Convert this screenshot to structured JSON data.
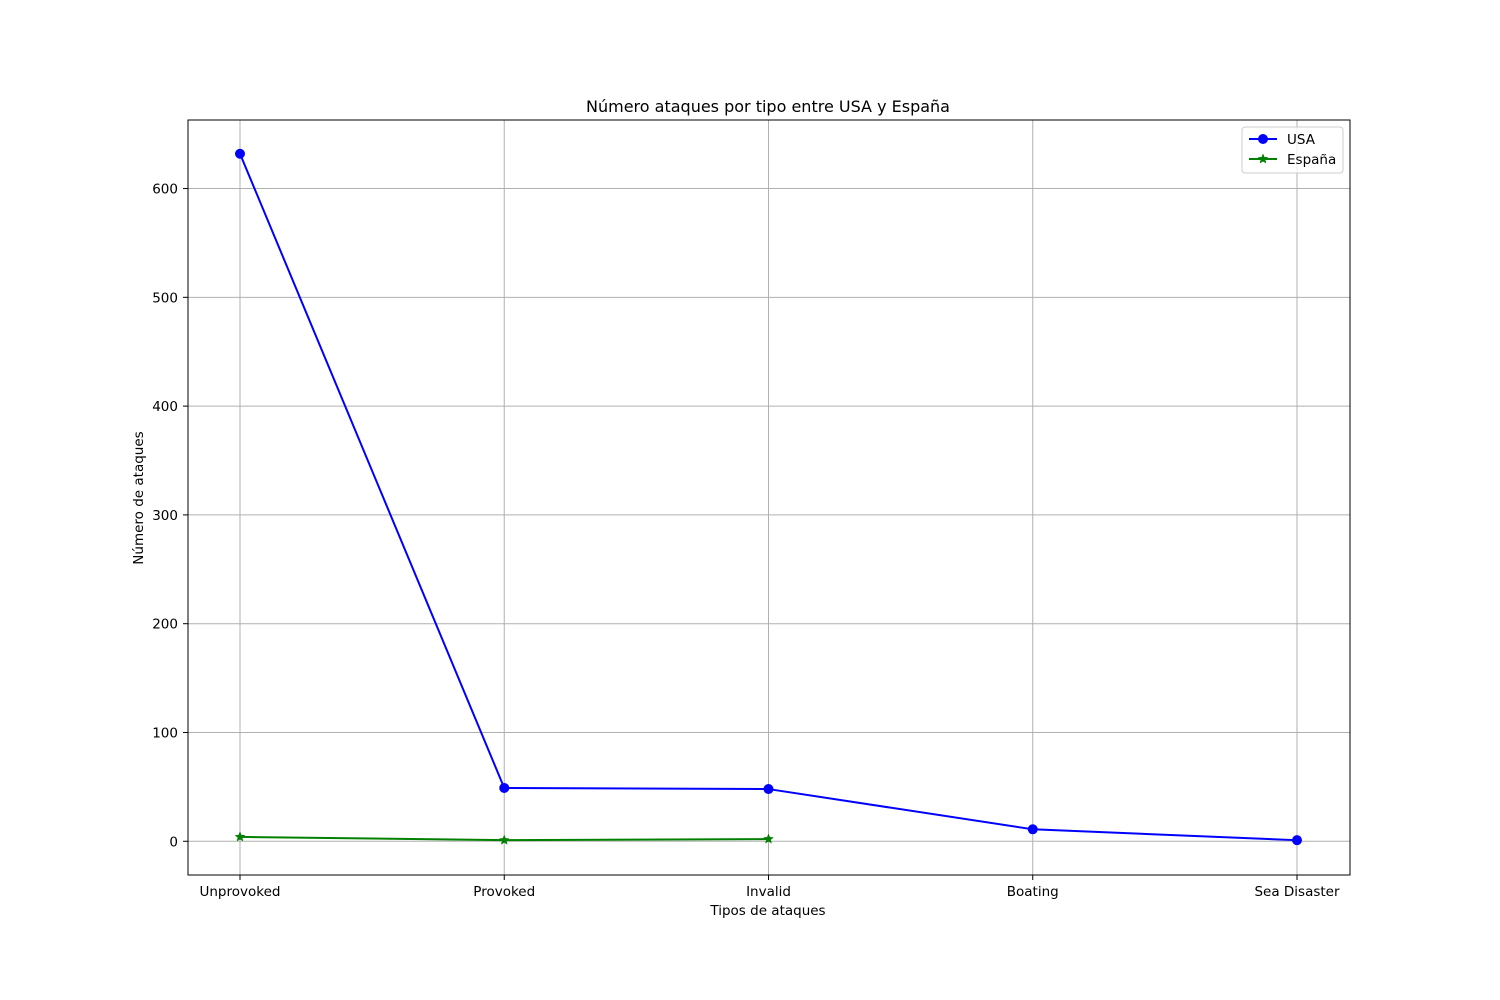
{
  "chart_data": {
    "type": "line",
    "title": "Número ataques por tipo entre USA y España",
    "xlabel": "Tipos de ataques",
    "ylabel": "Número de ataques",
    "categories": [
      "Unprovoked",
      "Provoked",
      "Invalid",
      "Boating",
      "Sea Disaster"
    ],
    "ylim": [
      -31,
      663
    ],
    "yticks": [
      0,
      100,
      200,
      300,
      400,
      500,
      600
    ],
    "grid": true,
    "legend_position": "top-right",
    "series": [
      {
        "name": "USA",
        "color": "#0000ff",
        "marker": "circle",
        "values": [
          632,
          49,
          48,
          11,
          1
        ]
      },
      {
        "name": "España",
        "color": "#008000",
        "marker": "star",
        "values": [
          4,
          1,
          2,
          null,
          null
        ]
      }
    ]
  }
}
